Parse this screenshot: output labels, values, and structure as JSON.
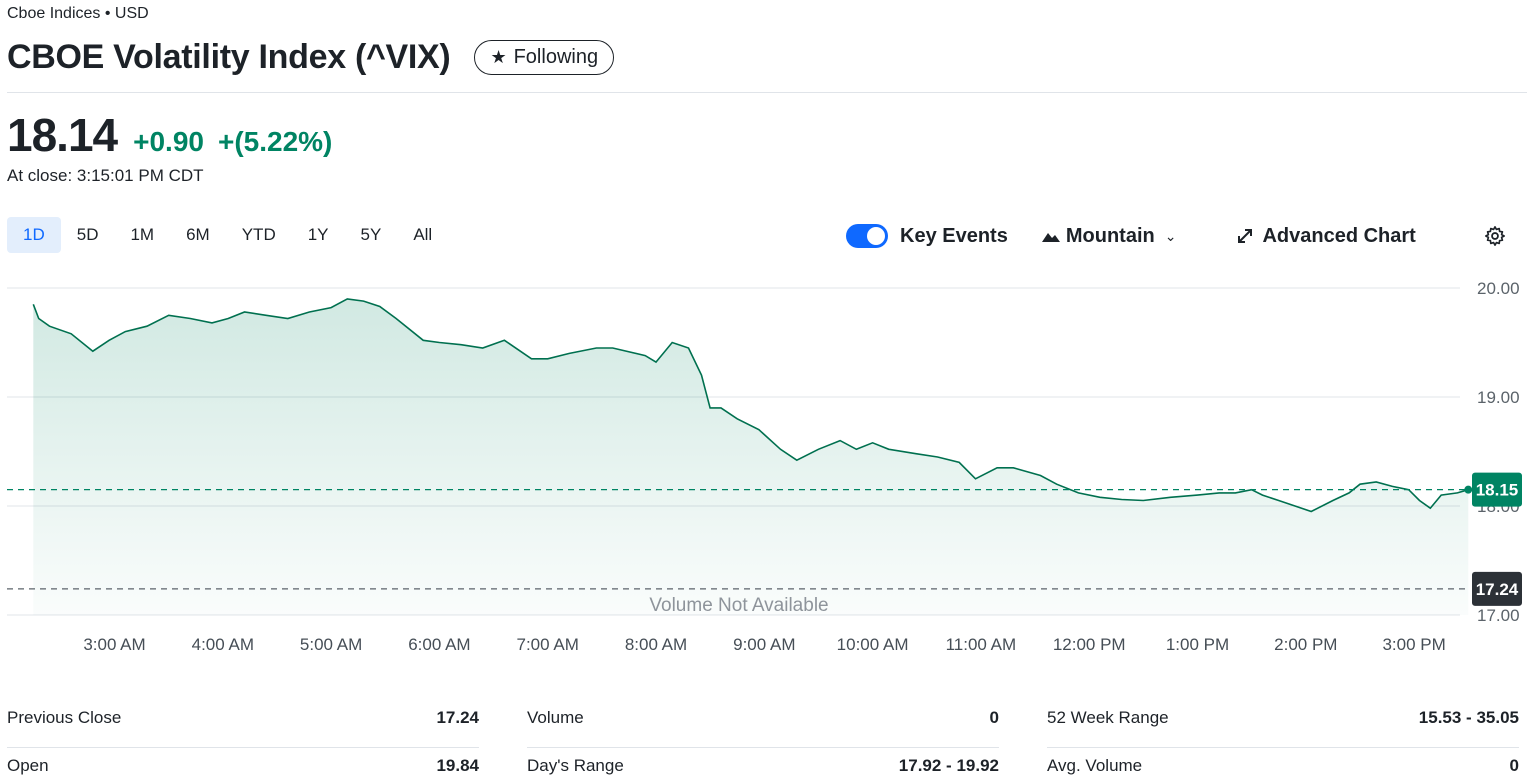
{
  "header": {
    "exchange": "Cboe Indices • USD",
    "title": "CBOE Volatility Index (^VIX)",
    "follow_label": "Following"
  },
  "quote": {
    "price": "18.14",
    "change": "+0.90",
    "change_pct": "+(5.22%)",
    "close_time": "At close: 3:15:01 PM CDT"
  },
  "ranges": [
    {
      "label": "1D",
      "active": true
    },
    {
      "label": "5D"
    },
    {
      "label": "1M"
    },
    {
      "label": "6M"
    },
    {
      "label": "YTD"
    },
    {
      "label": "1Y"
    },
    {
      "label": "5Y"
    },
    {
      "label": "All"
    }
  ],
  "toolbar": {
    "key_events_label": "Key Events",
    "key_events_on": true,
    "chart_type_label": "Mountain",
    "advanced_chart_label": "Advanced Chart"
  },
  "colors": {
    "accent": "#0f69ff",
    "up": "#008463",
    "line": "#00704f",
    "ref_badge": "#2c3137"
  },
  "chart_data": {
    "type": "area",
    "x_ticks": [
      "3:00 AM",
      "4:00 AM",
      "5:00 AM",
      "6:00 AM",
      "7:00 AM",
      "8:00 AM",
      "9:00 AM",
      "10:00 AM",
      "11:00 AM",
      "12:00 PM",
      "1:00 PM",
      "2:00 PM",
      "3:00 PM"
    ],
    "y_ticks": [
      "20.00",
      "19.00",
      "18.00",
      "17.00"
    ],
    "ylim": [
      17.0,
      20.0
    ],
    "current_label": "18.15",
    "current_value": 18.15,
    "prev_close_label": "17.24",
    "prev_close_value": 17.24,
    "volume_text": "Volume Not Available",
    "series": [
      {
        "values": [
          [
            2.25,
            19.85
          ],
          [
            2.3,
            19.72
          ],
          [
            2.4,
            19.65
          ],
          [
            2.6,
            19.58
          ],
          [
            2.8,
            19.42
          ],
          [
            2.95,
            19.52
          ],
          [
            3.1,
            19.6
          ],
          [
            3.3,
            19.65
          ],
          [
            3.5,
            19.75
          ],
          [
            3.7,
            19.72
          ],
          [
            3.9,
            19.68
          ],
          [
            4.05,
            19.72
          ],
          [
            4.2,
            19.78
          ],
          [
            4.4,
            19.75
          ],
          [
            4.6,
            19.72
          ],
          [
            4.8,
            19.78
          ],
          [
            5.0,
            19.82
          ],
          [
            5.15,
            19.9
          ],
          [
            5.3,
            19.88
          ],
          [
            5.45,
            19.83
          ],
          [
            5.6,
            19.72
          ],
          [
            5.85,
            19.52
          ],
          [
            6.0,
            19.5
          ],
          [
            6.2,
            19.48
          ],
          [
            6.4,
            19.45
          ],
          [
            6.6,
            19.52
          ],
          [
            6.85,
            19.35
          ],
          [
            7.0,
            19.35
          ],
          [
            7.2,
            19.4
          ],
          [
            7.45,
            19.45
          ],
          [
            7.6,
            19.45
          ],
          [
            7.9,
            19.38
          ],
          [
            8.0,
            19.32
          ],
          [
            8.15,
            19.5
          ],
          [
            8.3,
            19.45
          ],
          [
            8.42,
            19.2
          ],
          [
            8.5,
            18.9
          ],
          [
            8.6,
            18.9
          ],
          [
            8.75,
            18.8
          ],
          [
            8.95,
            18.7
          ],
          [
            9.15,
            18.52
          ],
          [
            9.3,
            18.42
          ],
          [
            9.5,
            18.52
          ],
          [
            9.7,
            18.6
          ],
          [
            9.85,
            18.52
          ],
          [
            10.0,
            18.58
          ],
          [
            10.15,
            18.52
          ],
          [
            10.4,
            18.48
          ],
          [
            10.6,
            18.45
          ],
          [
            10.8,
            18.4
          ],
          [
            10.95,
            18.25
          ],
          [
            11.15,
            18.35
          ],
          [
            11.3,
            18.35
          ],
          [
            11.55,
            18.28
          ],
          [
            11.7,
            18.2
          ],
          [
            11.9,
            18.12
          ],
          [
            12.1,
            18.08
          ],
          [
            12.3,
            18.06
          ],
          [
            12.5,
            18.05
          ],
          [
            12.75,
            18.08
          ],
          [
            13.0,
            18.1
          ],
          [
            13.2,
            18.12
          ],
          [
            13.35,
            18.12
          ],
          [
            13.5,
            18.15
          ],
          [
            13.6,
            18.1
          ],
          [
            13.75,
            18.05
          ],
          [
            13.9,
            18.0
          ],
          [
            14.05,
            17.95
          ],
          [
            14.25,
            18.05
          ],
          [
            14.4,
            18.12
          ],
          [
            14.5,
            18.2
          ],
          [
            14.65,
            18.22
          ],
          [
            14.8,
            18.18
          ],
          [
            14.95,
            18.15
          ],
          [
            15.05,
            18.05
          ],
          [
            15.15,
            17.98
          ],
          [
            15.25,
            18.1
          ],
          [
            15.4,
            18.12
          ],
          [
            15.5,
            18.15
          ]
        ]
      }
    ]
  },
  "stats": {
    "col1": [
      {
        "label": "Previous Close",
        "value": "17.24"
      },
      {
        "label": "Open",
        "value": "19.84"
      }
    ],
    "col2": [
      {
        "label": "Volume",
        "value": "0"
      },
      {
        "label": "Day's Range",
        "value": "17.92 - 19.92"
      }
    ],
    "col3": [
      {
        "label": "52 Week Range",
        "value": "15.53 - 35.05"
      },
      {
        "label": "Avg. Volume",
        "value": "0"
      }
    ]
  }
}
